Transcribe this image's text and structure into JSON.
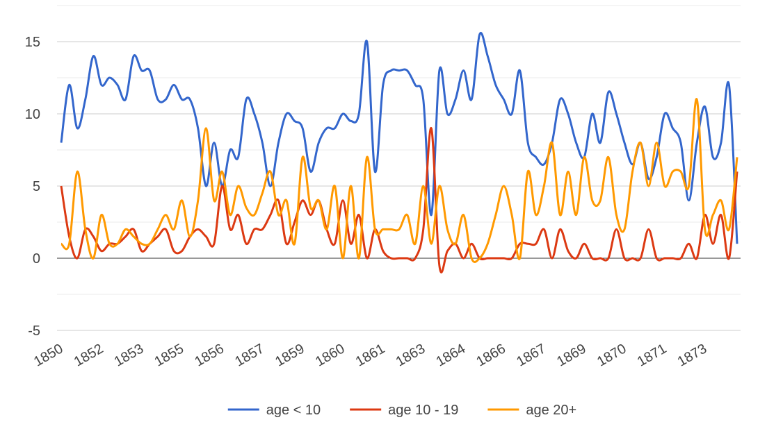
{
  "chart_data": {
    "type": "line",
    "categories": [
      "1850",
      null,
      null,
      null,
      null,
      "1852",
      null,
      null,
      null,
      null,
      "1853",
      null,
      null,
      null,
      null,
      "1855",
      null,
      null,
      null,
      null,
      "1856",
      null,
      null,
      null,
      null,
      "1857",
      null,
      null,
      null,
      null,
      "1859",
      null,
      null,
      null,
      null,
      "1860",
      null,
      null,
      null,
      null,
      "1861",
      null,
      null,
      null,
      null,
      "1863",
      null,
      null,
      null,
      null,
      "1864",
      null,
      null,
      null,
      null,
      "1866",
      null,
      null,
      null,
      null,
      "1867",
      null,
      null,
      null,
      null,
      "1869",
      null,
      null,
      null,
      null,
      "1870",
      null,
      null,
      null,
      null,
      "1871",
      null,
      null,
      null,
      null,
      "1873",
      null,
      null,
      null,
      null
    ],
    "series": [
      {
        "name": "age < 10",
        "color": "#3366cc",
        "values": [
          8,
          12,
          9,
          11,
          14,
          12,
          12.5,
          12,
          11,
          14,
          13,
          13,
          11,
          11,
          12,
          11,
          11,
          9,
          5,
          8,
          5,
          7.5,
          7,
          11,
          10,
          8,
          5,
          8,
          10,
          9.5,
          9,
          6,
          8,
          9,
          9,
          10,
          9.5,
          10,
          15,
          6,
          12,
          13,
          13,
          13,
          12,
          11,
          3,
          13,
          10,
          11,
          13,
          11,
          15.5,
          14,
          12,
          11,
          10,
          13,
          8,
          7,
          6.5,
          8,
          11,
          10,
          8,
          7,
          10,
          8,
          11.5,
          10,
          8,
          6.5,
          8,
          5.5,
          7,
          10,
          9,
          8,
          4,
          8,
          10.5,
          7,
          8,
          12,
          1
        ]
      },
      {
        "name": "age 10 - 19",
        "color": "#dc3912",
        "values": [
          5,
          1.5,
          0,
          2,
          1.5,
          0.5,
          1,
          1,
          1.5,
          2,
          0.5,
          1,
          1.5,
          2,
          0.5,
          0.5,
          1.5,
          2,
          1.5,
          1,
          5,
          2,
          3,
          1,
          2,
          2,
          3,
          4,
          1,
          2.5,
          4,
          3,
          4,
          2,
          1,
          4,
          1,
          3,
          0,
          2,
          0.5,
          0,
          0,
          0,
          0,
          2,
          9,
          -0.5,
          0.5,
          1,
          0,
          1,
          0,
          0,
          0,
          0,
          0,
          1,
          1,
          1,
          2,
          0,
          2,
          0.5,
          0,
          1,
          0,
          0,
          0,
          2,
          0,
          0,
          0,
          2,
          0,
          0,
          0,
          0,
          1,
          0,
          3,
          1,
          3,
          0,
          6
        ]
      },
      {
        "name": "age 20+",
        "color": "#ff9900",
        "values": [
          1,
          1,
          6,
          2,
          0,
          3,
          1,
          1,
          2,
          1.5,
          1,
          1,
          2,
          3,
          2,
          4,
          1.5,
          4,
          9,
          4,
          6,
          3,
          5,
          3.5,
          3,
          4.5,
          6,
          3,
          4,
          1,
          7,
          3.5,
          4,
          2,
          5,
          0,
          5,
          0,
          7,
          2,
          2,
          2,
          2,
          3,
          1,
          5,
          1,
          5,
          2,
          1,
          3,
          0,
          0,
          1,
          3,
          5,
          3,
          0,
          6,
          3,
          5,
          8,
          3,
          6,
          3,
          7,
          4,
          4,
          7,
          3,
          2,
          6,
          8,
          5,
          8,
          5,
          6,
          6,
          5,
          11,
          2,
          3,
          4,
          2,
          7
        ]
      }
    ],
    "ylim": [
      -5,
      17.5
    ],
    "yticks": [
      -5,
      0,
      5,
      10,
      15
    ],
    "grid": true,
    "legend": "bottom"
  }
}
